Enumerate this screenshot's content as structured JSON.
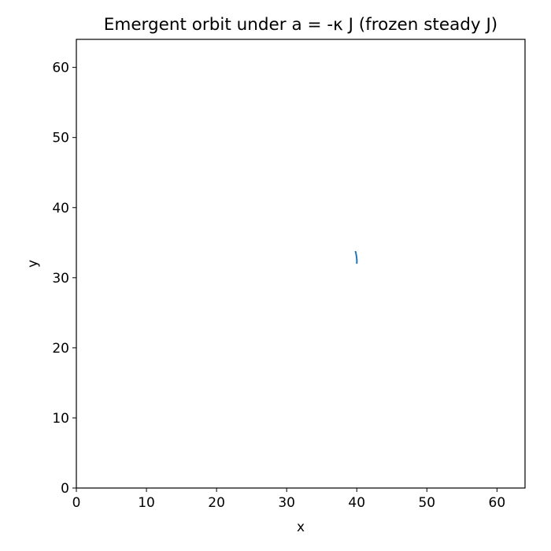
{
  "chart_data": {
    "type": "line",
    "title": "Emergent orbit under a = -κ J (frozen steady J)",
    "xlabel": "x",
    "ylabel": "y",
    "xlim": [
      0,
      64
    ],
    "ylim": [
      0,
      64
    ],
    "xticks": [
      "0",
      "10",
      "20",
      "30",
      "40",
      "50",
      "60"
    ],
    "yticks": [
      "0",
      "10",
      "20",
      "30",
      "40",
      "50",
      "60"
    ],
    "grid": false,
    "legend": "none",
    "series": [
      {
        "color": "#1f77b4",
        "x": [
          39.8,
          39.88,
          39.95,
          40.0,
          40.02,
          40.0
        ],
        "y": [
          33.8,
          33.5,
          33.1,
          32.7,
          32.35,
          32.0
        ]
      }
    ]
  }
}
